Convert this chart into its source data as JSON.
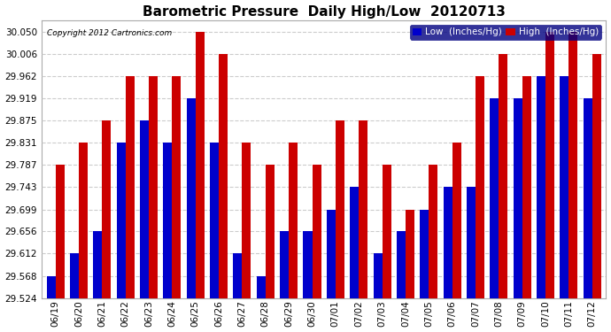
{
  "title": "Barometric Pressure  Daily High/Low  20120713",
  "copyright": "Copyright 2012 Cartronics.com",
  "legend_low": "Low  (Inches/Hg)",
  "legend_high": "High  (Inches/Hg)",
  "dates": [
    "06/19",
    "06/20",
    "06/21",
    "06/22",
    "06/23",
    "06/24",
    "06/25",
    "06/26",
    "06/27",
    "06/28",
    "06/29",
    "06/30",
    "07/01",
    "07/02",
    "07/03",
    "07/04",
    "07/05",
    "07/06",
    "07/07",
    "07/08",
    "07/09",
    "07/10",
    "07/11",
    "07/12"
  ],
  "blue_values": [
    29.568,
    29.612,
    29.656,
    29.831,
    29.875,
    29.831,
    29.919,
    29.831,
    29.612,
    29.568,
    29.656,
    29.656,
    29.699,
    29.743,
    29.612,
    29.656,
    29.699,
    29.743,
    29.743,
    29.919,
    29.919,
    29.962,
    29.962,
    29.919
  ],
  "red_values": [
    29.787,
    29.831,
    29.875,
    29.962,
    29.962,
    29.962,
    30.05,
    30.006,
    29.831,
    29.787,
    29.831,
    29.787,
    29.875,
    29.875,
    29.787,
    29.699,
    29.787,
    29.831,
    29.962,
    30.006,
    29.962,
    30.05,
    30.05,
    30.006
  ],
  "ylim_min": 29.524,
  "ylim_max": 30.072,
  "yticks": [
    29.524,
    29.568,
    29.612,
    29.656,
    29.699,
    29.743,
    29.787,
    29.831,
    29.875,
    29.919,
    29.962,
    30.006,
    30.05
  ],
  "color_low": "#0000cc",
  "color_high": "#cc0000",
  "bg_color": "#ffffff",
  "plot_bg_color": "#ffffff",
  "grid_color": "#cccccc",
  "bar_width": 0.38,
  "title_fontsize": 11,
  "tick_fontsize": 7.5,
  "legend_fontsize": 7.5
}
